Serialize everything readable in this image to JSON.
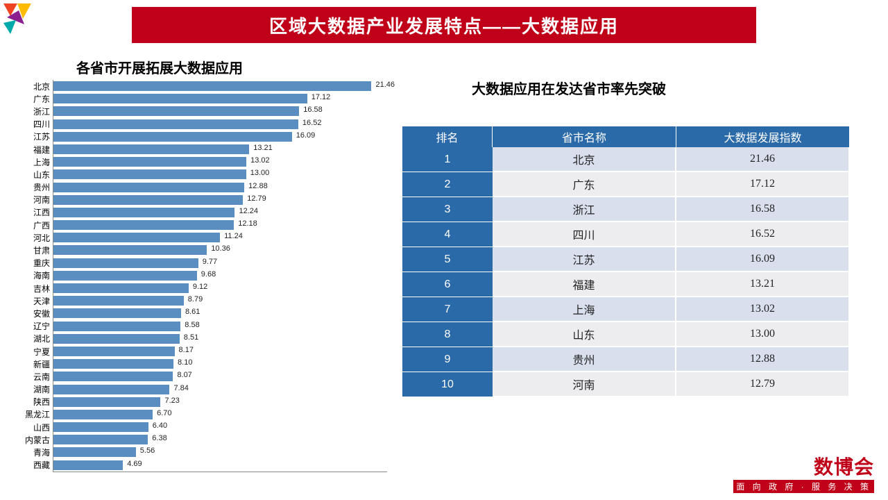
{
  "header": {
    "title": "区域大数据产业发展特点——大数据应用"
  },
  "chart": {
    "title": "各省市开展拓展大数据应用",
    "type": "bar-horizontal",
    "xlim_max": 22,
    "bar_color": "#5b8ec0",
    "axis_color": "#888888",
    "label_fontsize": 12,
    "value_fontsize": 11,
    "items": [
      {
        "label": "北京",
        "value": 21.46
      },
      {
        "label": "广东",
        "value": 17.12
      },
      {
        "label": "浙江",
        "value": 16.58
      },
      {
        "label": "四川",
        "value": 16.52
      },
      {
        "label": "江苏",
        "value": 16.09
      },
      {
        "label": "福建",
        "value": 13.21
      },
      {
        "label": "上海",
        "value": 13.02
      },
      {
        "label": "山东",
        "value": 13.0
      },
      {
        "label": "贵州",
        "value": 12.88
      },
      {
        "label": "河南",
        "value": 12.79
      },
      {
        "label": "江西",
        "value": 12.24
      },
      {
        "label": "广西",
        "value": 12.18
      },
      {
        "label": "河北",
        "value": 11.24
      },
      {
        "label": "甘肃",
        "value": 10.36
      },
      {
        "label": "重庆",
        "value": 9.77
      },
      {
        "label": "海南",
        "value": 9.68
      },
      {
        "label": "吉林",
        "value": 9.12
      },
      {
        "label": "天津",
        "value": 8.79
      },
      {
        "label": "安徽",
        "value": 8.61
      },
      {
        "label": "辽宁",
        "value": 8.58
      },
      {
        "label": "湖北",
        "value": 8.51
      },
      {
        "label": "宁夏",
        "value": 8.17
      },
      {
        "label": "新疆",
        "value": 8.1
      },
      {
        "label": "云南",
        "value": 8.07
      },
      {
        "label": "湖南",
        "value": 7.84
      },
      {
        "label": "陕西",
        "value": 7.23
      },
      {
        "label": "黑龙江",
        "value": 6.7
      },
      {
        "label": "山西",
        "value": 6.4
      },
      {
        "label": "内蒙古",
        "value": 6.38
      },
      {
        "label": "青海",
        "value": 5.56
      },
      {
        "label": "西藏",
        "value": 4.69
      }
    ]
  },
  "table": {
    "title": "大数据应用在发达省市率先突破",
    "header_bg": "#2b6aa8",
    "header_color": "#ffffff",
    "row_even_bg": "#dadfee",
    "row_odd_bg": "#ededf0",
    "columns": [
      "排名",
      "省市名称",
      "大数据发展指数"
    ],
    "rows": [
      {
        "rank": "1",
        "name": "北京",
        "index": "21.46"
      },
      {
        "rank": "2",
        "name": "广东",
        "index": "17.12"
      },
      {
        "rank": "3",
        "name": "浙江",
        "index": "16.58"
      },
      {
        "rank": "4",
        "name": "四川",
        "index": "16.52"
      },
      {
        "rank": "5",
        "name": "江苏",
        "index": "16.09"
      },
      {
        "rank": "6",
        "name": "福建",
        "index": "13.21"
      },
      {
        "rank": "7",
        "name": "上海",
        "index": "13.02"
      },
      {
        "rank": "8",
        "name": "山东",
        "index": "13.00"
      },
      {
        "rank": "9",
        "name": "贵州",
        "index": "12.88"
      },
      {
        "rank": "10",
        "name": "河南",
        "index": "12.79"
      }
    ]
  },
  "brand": {
    "main": "数博会",
    "sub": "面 向 政 府 · 服 务 决 策"
  }
}
